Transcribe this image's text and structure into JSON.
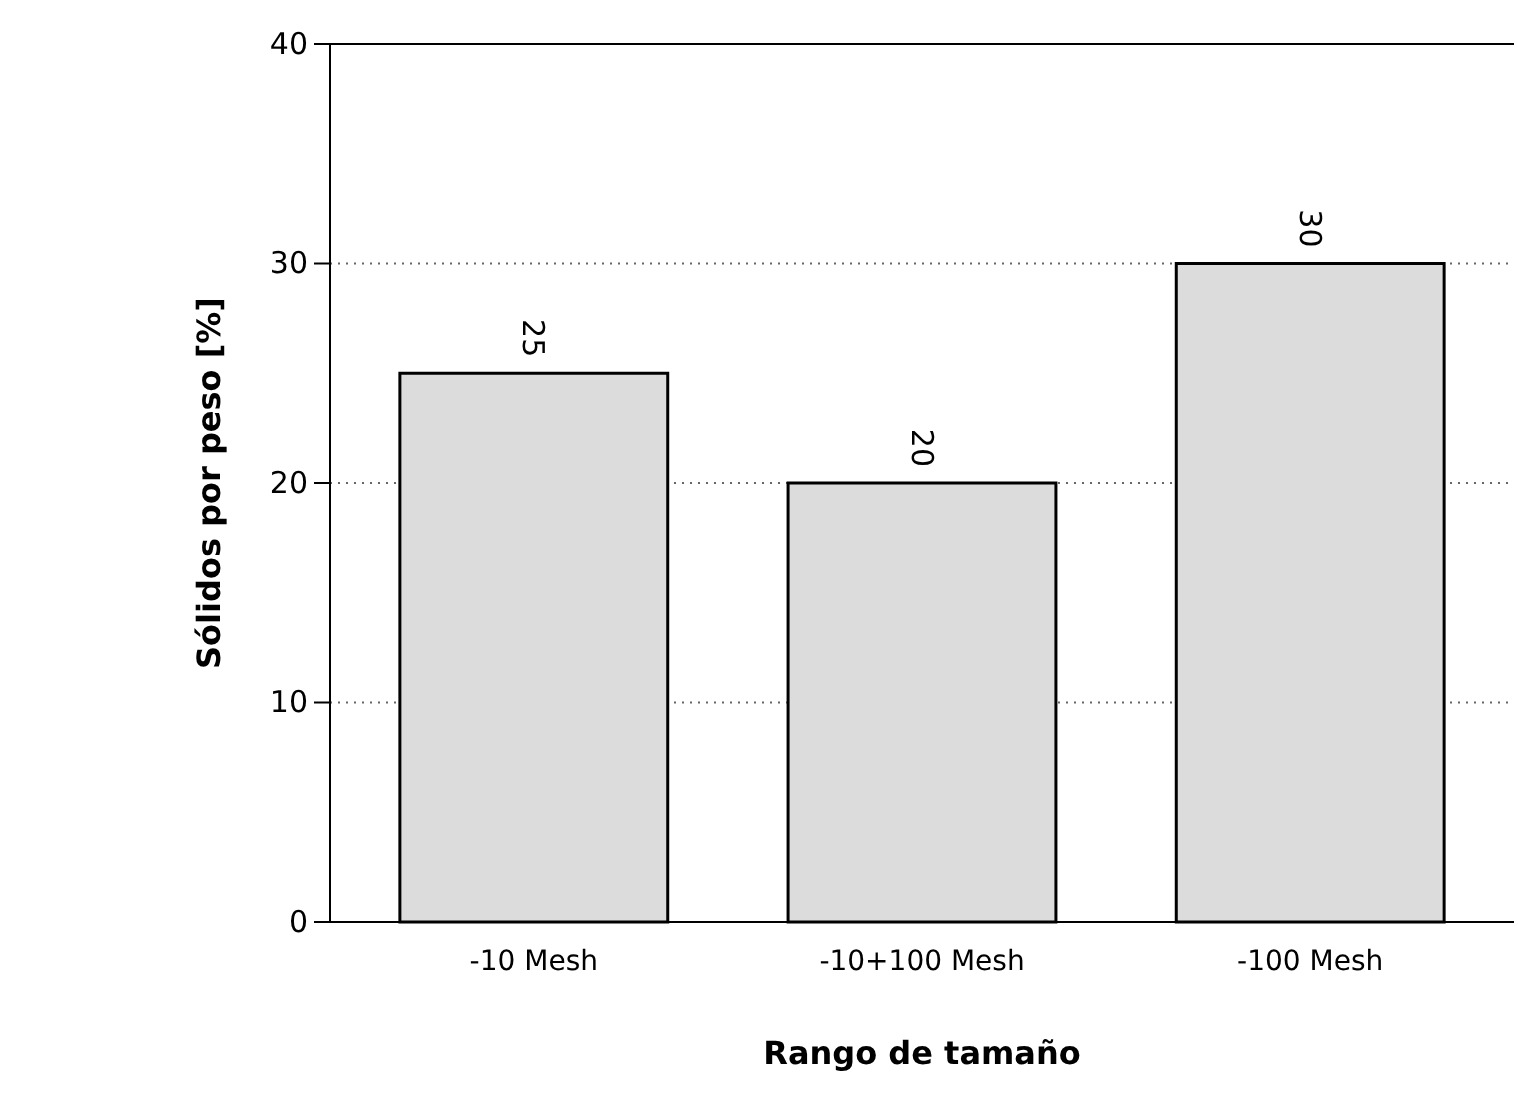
{
  "chart_data": {
    "type": "bar",
    "xlabel": "Rango de tamaño",
    "ylabel": "Sólidos por peso [%]",
    "categories": [
      "-10 Mesh",
      "-10+100 Mesh",
      "-100 Mesh"
    ],
    "values": [
      25,
      20,
      30
    ],
    "color": "#dcdcdc",
    "ylim": [
      0,
      40
    ],
    "yticks": [
      0,
      10,
      20,
      30,
      40
    ],
    "grid": "y",
    "data_labels": true
  }
}
